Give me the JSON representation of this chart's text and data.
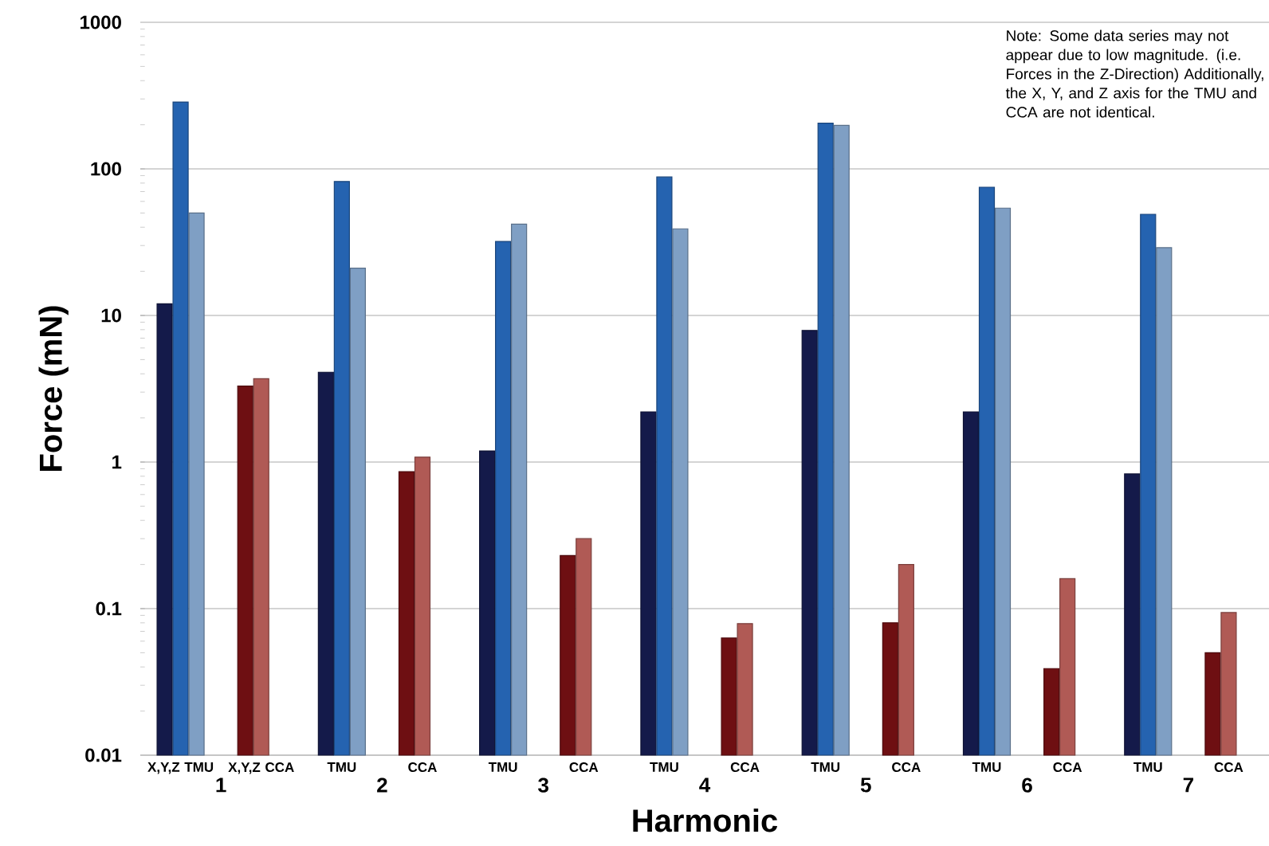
{
  "chart_data": {
    "type": "bar",
    "xlabel": "Harmonic",
    "ylabel": "Force (mN)",
    "categories": [
      "X,Y,Z TMU",
      "X,Y,Z CCA",
      "TMU",
      "CCA",
      "TMU",
      "CCA",
      "TMU",
      "CCA",
      "TMU",
      "CCA",
      "TMU",
      "CCA",
      "TMU",
      "CCA"
    ],
    "series": [
      {
        "colors": [
          "#141a4a",
          "#6e0f12",
          "#141a4a",
          "#6e0f12",
          "#141a4a",
          "#6e0f12",
          "#141a4a",
          "#6e0f12",
          "#141a4a",
          "#6e0f12",
          "#141a4a",
          "#6e0f12",
          "#141a4a",
          "#6e0f12"
        ],
        "values": [
          12,
          3.3,
          4.1,
          0.86,
          1.19,
          0.23,
          2.2,
          0.063,
          7.9,
          0.08,
          2.2,
          0.039,
          0.83,
          0.05
        ]
      },
      {
        "colors": [
          "#2563b0",
          "#b05a55",
          "#2563b0",
          "#b05a55",
          "#2563b0",
          "#b05a55",
          "#2563b0",
          "#b05a55",
          "#2563b0",
          "#b05a55",
          "#2563b0",
          "#b05a55",
          "#2563b0",
          "#b05a55"
        ],
        "values": [
          286,
          3.7,
          82,
          1.08,
          32,
          0.3,
          88,
          0.079,
          205,
          0.2,
          75,
          0.16,
          49,
          0.094
        ]
      },
      {
        "colors": [
          "#7f9fc4",
          null,
          "#7f9fc4",
          null,
          "#7f9fc4",
          null,
          "#7f9fc4",
          null,
          "#7f9fc4",
          null,
          "#7f9fc4",
          null,
          "#7f9fc4",
          null
        ],
        "values": [
          50,
          null,
          21,
          null,
          42,
          null,
          39,
          null,
          198,
          null,
          54,
          null,
          29,
          null
        ]
      }
    ],
    "log": "y",
    "ylim": [
      0.01,
      1000
    ],
    "yticks": [
      0.01,
      0.1,
      1,
      10,
      100,
      1000
    ],
    "grid": "y",
    "annotations": [
      "Note: Some data series may not appear due to low magnitude.  (i.e. Forces in the Z-Direction) Additionally, the X, Y, and Z axis for the TMU and CCA are not identical.",
      "1",
      "2",
      "3",
      "4",
      "5",
      "6",
      "7"
    ]
  }
}
